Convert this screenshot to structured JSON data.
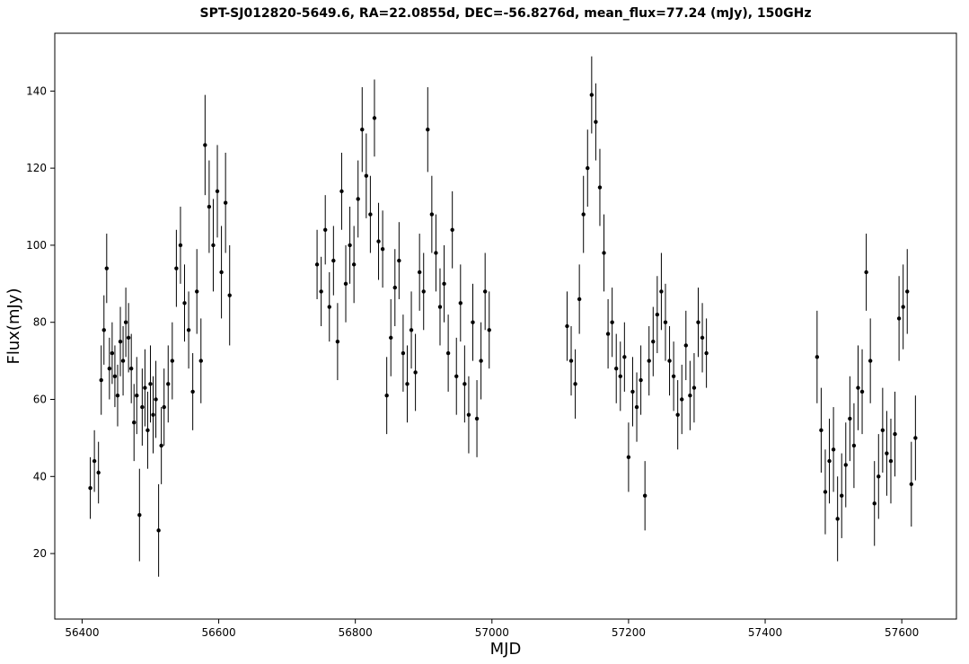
{
  "chart_data": {
    "type": "scatter",
    "title": "SPT-SJ012820-5649.6, RA=22.0855d, DEC=-56.8276d, mean_flux=77.24 (mJy), 150GHz",
    "xlabel": "MJD",
    "ylabel": "Flux(mJy)",
    "xlim": [
      56360,
      57680
    ],
    "ylim": [
      3,
      155
    ],
    "xticks": [
      56400,
      56600,
      56800,
      57000,
      57200,
      57400,
      57600
    ],
    "yticks": [
      20,
      40,
      60,
      80,
      100,
      120,
      140
    ],
    "grid": false,
    "legend": "none",
    "marker_color": "#000000",
    "series": [
      {
        "x": [
          56412,
          56418,
          56424,
          56428,
          56432,
          56436,
          56440,
          56444,
          56448,
          56452,
          56456,
          56460,
          56464,
          56468,
          56472,
          56476,
          56480,
          56484,
          56488,
          56492,
          56496,
          56500,
          56504,
          56508,
          56512,
          56516,
          56520,
          56526,
          56532,
          56538,
          56544,
          56550,
          56556,
          56562,
          56568,
          56574,
          56580,
          56586,
          56592,
          56598,
          56604,
          56610,
          56616
        ],
        "y": [
          37,
          44,
          41,
          65,
          78,
          94,
          68,
          72,
          66,
          61,
          75,
          70,
          80,
          76,
          68,
          54,
          61,
          30,
          58,
          63,
          52,
          64,
          56,
          60,
          26,
          48,
          58,
          64,
          70,
          94,
          100,
          85,
          78,
          62,
          88,
          70,
          126,
          110,
          100,
          114,
          93,
          111,
          87
        ],
        "yerr": [
          8,
          8,
          8,
          9,
          9,
          9,
          8,
          8,
          8,
          8,
          9,
          9,
          9,
          9,
          9,
          10,
          10,
          12,
          10,
          10,
          10,
          10,
          10,
          10,
          12,
          10,
          10,
          10,
          10,
          10,
          10,
          10,
          10,
          10,
          11,
          11,
          13,
          12,
          12,
          12,
          12,
          13,
          13
        ]
      },
      {
        "x": [
          56744,
          56750,
          56756,
          56762,
          56768,
          56774,
          56780,
          56786,
          56792,
          56798,
          56804,
          56810,
          56816,
          56822,
          56828,
          56834,
          56840,
          56846,
          56852,
          56858,
          56864,
          56870,
          56876,
          56882,
          56888,
          56894,
          56900,
          56906,
          56912,
          56918,
          56924,
          56930,
          56936,
          56942,
          56948,
          56954,
          56960,
          56966,
          56972,
          56978,
          56984,
          56990,
          56996
        ],
        "y": [
          95,
          88,
          104,
          84,
          96,
          75,
          114,
          90,
          100,
          95,
          112,
          130,
          118,
          108,
          133,
          101,
          99,
          61,
          76,
          89,
          96,
          72,
          64,
          78,
          67,
          93,
          88,
          130,
          108,
          98,
          84,
          90,
          72,
          104,
          66,
          85,
          64,
          56,
          80,
          55,
          70,
          88,
          78
        ],
        "yerr": [
          9,
          9,
          9,
          9,
          9,
          10,
          10,
          10,
          10,
          10,
          10,
          11,
          11,
          10,
          10,
          10,
          10,
          10,
          10,
          10,
          10,
          10,
          10,
          10,
          10,
          10,
          10,
          11,
          10,
          10,
          10,
          10,
          10,
          10,
          10,
          10,
          10,
          10,
          10,
          10,
          10,
          10,
          10
        ]
      },
      {
        "x": [
          57110,
          57116,
          57122,
          57128,
          57134,
          57140,
          57146,
          57152,
          57158,
          57164,
          57170,
          57176,
          57182,
          57188,
          57194,
          57200,
          57206,
          57212,
          57218,
          57224,
          57230,
          57236,
          57242,
          57248,
          57254,
          57260,
          57266,
          57272,
          57278,
          57284,
          57290,
          57296,
          57302,
          57308,
          57314
        ],
        "y": [
          79,
          70,
          64,
          86,
          108,
          120,
          139,
          132,
          115,
          98,
          77,
          80,
          68,
          66,
          71,
          45,
          62,
          58,
          65,
          35,
          70,
          75,
          82,
          88,
          80,
          70,
          66,
          56,
          60,
          74,
          61,
          63,
          80,
          76,
          72
        ],
        "yerr": [
          9,
          9,
          9,
          9,
          10,
          10,
          10,
          10,
          10,
          10,
          9,
          9,
          9,
          9,
          9,
          9,
          9,
          9,
          9,
          9,
          9,
          9,
          10,
          10,
          10,
          9,
          9,
          9,
          9,
          9,
          9,
          9,
          9,
          9,
          9
        ]
      },
      {
        "x": [
          57476,
          57482,
          57488,
          57494,
          57500,
          57506,
          57512,
          57518,
          57524,
          57530,
          57536,
          57542,
          57548,
          57554,
          57560,
          57566,
          57572,
          57578,
          57584,
          57590,
          57596,
          57602,
          57608,
          57614,
          57620
        ],
        "y": [
          71,
          52,
          36,
          44,
          47,
          29,
          35,
          43,
          55,
          48,
          63,
          62,
          93,
          70,
          33,
          40,
          52,
          46,
          44,
          51,
          81,
          84,
          88,
          38,
          50
        ],
        "yerr": [
          12,
          11,
          11,
          11,
          11,
          11,
          11,
          11,
          11,
          11,
          11,
          11,
          10,
          11,
          11,
          11,
          11,
          11,
          11,
          11,
          11,
          11,
          11,
          11,
          11
        ]
      }
    ]
  }
}
